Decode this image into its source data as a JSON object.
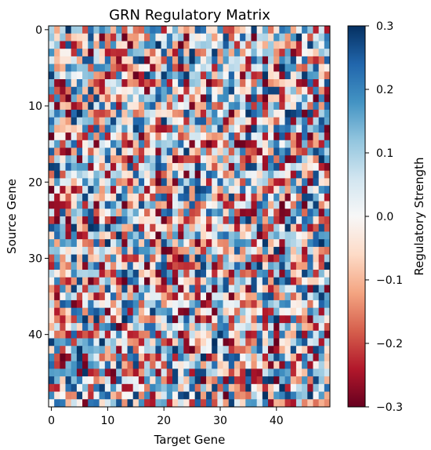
{
  "chart_data": {
    "type": "heatmap",
    "title": "GRN Regulatory Matrix",
    "xlabel": "Target Gene",
    "ylabel": "Source Gene",
    "x_ticks": [
      0,
      10,
      20,
      30,
      40
    ],
    "y_ticks": [
      0,
      10,
      20,
      30,
      40
    ],
    "rows": 50,
    "cols": 50,
    "colormap": "RdBu",
    "colorbar": {
      "label": "Regulatory Strength",
      "vmin": -0.3,
      "vmax": 0.3,
      "ticks": [
        0.3,
        0.2,
        0.1,
        0.0,
        -0.1,
        -0.2,
        -0.3
      ],
      "tick_labels": [
        "0.3",
        "0.2",
        "0.1",
        "0.0",
        "−0.1",
        "−0.2",
        "−0.3"
      ]
    },
    "values_note_excluded": true,
    "colors": {
      "negative": "#67001f",
      "mid_negative": "#f4a582",
      "zero": "#f7f7f7",
      "mid_positive": "#92c5de",
      "positive": "#053061"
    }
  }
}
